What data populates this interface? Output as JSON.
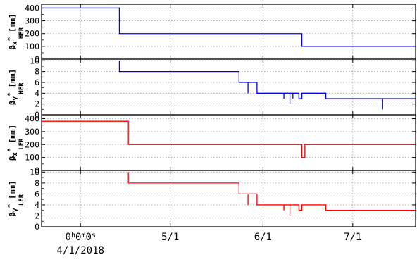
{
  "chart_data": [
    {
      "type": "line",
      "name": "beta_x_her",
      "ylabel_main": "β",
      "ylabel_sub": "x",
      "ylabel_sup": "*",
      "ylabel_subsub": "HER",
      "ylabel_unit": "[mm]",
      "ylim": [
        0,
        430
      ],
      "yticks": [
        0,
        100,
        200,
        300,
        400
      ],
      "color": "#0000ff",
      "grid": true,
      "series": [
        {
          "points": [
            [
              "2018-03-19",
              400
            ],
            [
              "2018-04-14",
              400
            ],
            [
              "2018-04-14",
              200
            ],
            [
              "2018-06-14",
              200
            ],
            [
              "2018-06-14",
              100
            ],
            [
              "2018-07-22",
              100
            ]
          ]
        }
      ]
    },
    {
      "type": "line",
      "name": "beta_y_her",
      "ylabel_main": "β",
      "ylabel_sub": "y",
      "ylabel_sup": "*",
      "ylabel_subsub": "HER",
      "ylabel_unit": "[mm]",
      "ylim": [
        0,
        10.3
      ],
      "yticks": [
        0,
        2,
        4,
        6,
        8,
        10
      ],
      "color": "#0000ff",
      "grid": true,
      "series": [
        {
          "points": [
            [
              "2018-04-14",
              10
            ],
            [
              "2018-04-14",
              8
            ],
            [
              "2018-05-24",
              8
            ],
            [
              "2018-05-24",
              6
            ],
            [
              "2018-05-27",
              6
            ],
            [
              "2018-05-27",
              4
            ],
            [
              "2018-05-27",
              6
            ],
            [
              "2018-05-30",
              6
            ],
            [
              "2018-05-30",
              4
            ],
            [
              "2018-06-08",
              4
            ],
            [
              "2018-06-08",
              3
            ],
            [
              "2018-06-08",
              4
            ],
            [
              "2018-06-10",
              4
            ],
            [
              "2018-06-10",
              2
            ],
            [
              "2018-06-10",
              4
            ],
            [
              "2018-06-11",
              4
            ],
            [
              "2018-06-11",
              3
            ],
            [
              "2018-06-11",
              4
            ],
            [
              "2018-06-13",
              4
            ],
            [
              "2018-06-13",
              3
            ],
            [
              "2018-06-14",
              3
            ],
            [
              "2018-06-14",
              4
            ],
            [
              "2018-06-22",
              4
            ],
            [
              "2018-06-22",
              3
            ],
            [
              "2018-07-11",
              3
            ],
            [
              "2018-07-11",
              1
            ],
            [
              "2018-07-11",
              3
            ],
            [
              "2018-07-22",
              3
            ]
          ]
        }
      ]
    },
    {
      "type": "line",
      "name": "beta_x_ler",
      "ylabel_main": "β",
      "ylabel_sub": "x",
      "ylabel_sup": "*",
      "ylabel_subsub": "LER",
      "ylabel_unit": "[mm]",
      "ylim": [
        0,
        430
      ],
      "yticks": [
        0,
        100,
        200,
        300,
        400
      ],
      "color": "#ff0000",
      "grid": true,
      "series": [
        {
          "points": [
            [
              "2018-03-19",
              380
            ],
            [
              "2018-04-17",
              380
            ],
            [
              "2018-04-17",
              200
            ],
            [
              "2018-06-14",
              200
            ],
            [
              "2018-06-14",
              100
            ],
            [
              "2018-06-15",
              100
            ],
            [
              "2018-06-15",
              200
            ],
            [
              "2018-07-22",
              200
            ]
          ]
        }
      ]
    },
    {
      "type": "line",
      "name": "beta_y_ler",
      "ylabel_main": "β",
      "ylabel_sub": "y",
      "ylabel_sup": "*",
      "ylabel_subsub": "LER",
      "ylabel_unit": "[mm]",
      "ylim": [
        0,
        10.3
      ],
      "yticks": [
        0,
        2,
        4,
        6,
        8,
        10
      ],
      "color": "#ff0000",
      "grid": true,
      "series": [
        {
          "points": [
            [
              "2018-04-17",
              10
            ],
            [
              "2018-04-17",
              8
            ],
            [
              "2018-05-24",
              8
            ],
            [
              "2018-05-24",
              6
            ],
            [
              "2018-05-27",
              6
            ],
            [
              "2018-05-27",
              4
            ],
            [
              "2018-05-27",
              6
            ],
            [
              "2018-05-30",
              6
            ],
            [
              "2018-05-30",
              4
            ],
            [
              "2018-06-08",
              4
            ],
            [
              "2018-06-08",
              3
            ],
            [
              "2018-06-08",
              4
            ],
            [
              "2018-06-10",
              4
            ],
            [
              "2018-06-10",
              2
            ],
            [
              "2018-06-10",
              4
            ],
            [
              "2018-06-13",
              4
            ],
            [
              "2018-06-13",
              3
            ],
            [
              "2018-06-14",
              3
            ],
            [
              "2018-06-14",
              4
            ],
            [
              "2018-06-22",
              4
            ],
            [
              "2018-06-22",
              3
            ],
            [
              "2018-07-22",
              3
            ]
          ]
        }
      ]
    }
  ],
  "x_axis": {
    "range": [
      "2018-03-19",
      "2018-07-22"
    ],
    "ticks": [
      {
        "date": "2018-04-01",
        "label": "0h0m0s",
        "sublabel": "4/1/2018"
      },
      {
        "date": "2018-05-01",
        "label": "5/1"
      },
      {
        "date": "2018-06-01",
        "label": "6/1"
      },
      {
        "date": "2018-07-01",
        "label": "7/1"
      }
    ]
  }
}
